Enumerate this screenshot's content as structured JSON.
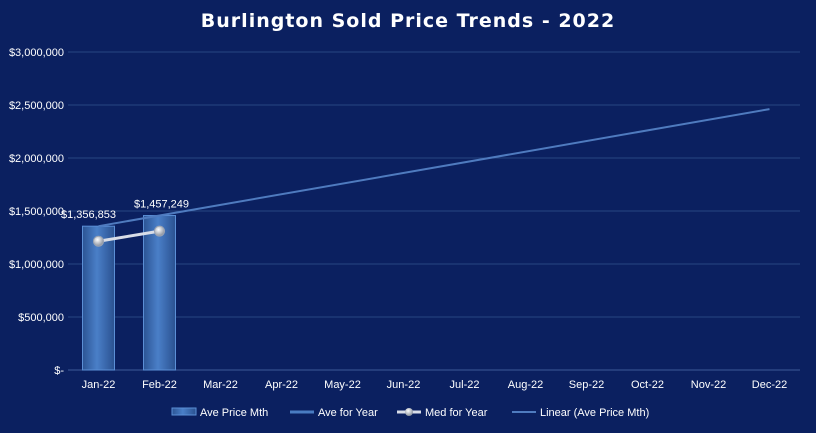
{
  "chart_data": {
    "type": "bar",
    "title": "Burlington  Sold  Price  Trends  -  2022",
    "categories": [
      "Jan-22",
      "Feb-22",
      "Mar-22",
      "Apr-22",
      "May-22",
      "Jun-22",
      "Jul-22",
      "Aug-22",
      "Sep-22",
      "Oct-22",
      "Nov-22",
      "Dec-22"
    ],
    "y_ticks": [
      "$-",
      "$500,000",
      "$1,000,000",
      "$1,500,000",
      "$2,000,000",
      "$2,500,000",
      "$3,000,000"
    ],
    "ylim": [
      0,
      3000000
    ],
    "grid": true,
    "legend_position": "bottom",
    "series": [
      {
        "name": "Ave Price Mth",
        "kind": "bar",
        "values": [
          1356853,
          1457249,
          null,
          null,
          null,
          null,
          null,
          null,
          null,
          null,
          null,
          null
        ],
        "color": "#3f72b8"
      },
      {
        "name": "Ave for Year",
        "kind": "line",
        "values": [
          null,
          null,
          null,
          null,
          null,
          null,
          null,
          null,
          null,
          null,
          null,
          null
        ],
        "color": "#4a7cc2"
      },
      {
        "name": "Med for Year",
        "kind": "line-marker",
        "values": [
          1215000,
          1310000,
          null,
          null,
          null,
          null,
          null,
          null,
          null,
          null,
          null,
          null
        ],
        "color": "#c0c8d8"
      },
      {
        "name": "Linear (Ave Price Mth)",
        "kind": "trendline",
        "values": [
          1356853,
          1457249,
          1557645,
          1658041,
          1758437,
          1858833,
          1959229,
          2059625,
          2160021,
          2260417,
          2360813,
          2461209
        ],
        "color": "#4f7bbf"
      }
    ],
    "data_labels": [
      "$1,356,853",
      "$1,457,249"
    ]
  }
}
